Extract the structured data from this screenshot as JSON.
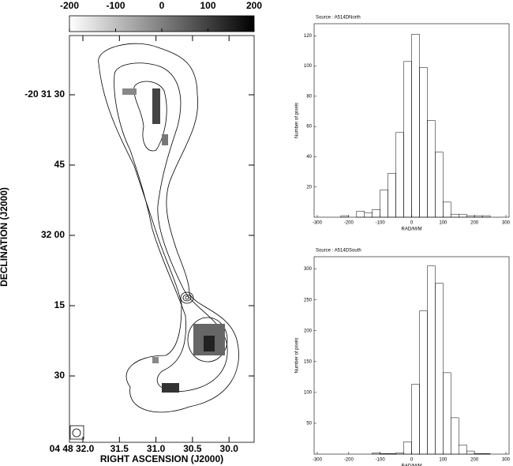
{
  "chart_data": [
    {
      "type": "map",
      "colorbar": {
        "lim": [
          -200,
          200
        ],
        "ticks": [
          -200,
          -100,
          0,
          100,
          200
        ]
      },
      "xlabel": "RIGHT ASCENSION (J2000)",
      "ylabel": "DECLINATION (J2000)",
      "x_tick_labels": [
        "04 48 32.0",
        "31.5",
        "31.0",
        "30.5",
        "30.0"
      ],
      "y_tick_labels": [
        "-20 31 30",
        "45",
        "32 00",
        "15",
        "30"
      ]
    },
    {
      "type": "histogram",
      "title": "Source : A514DNorth",
      "xlabel": "RAD/M/M",
      "ylabel": "Number of pixels",
      "bins": [
        -300,
        -275,
        -250,
        -225,
        -200,
        -175,
        -150,
        -125,
        -100,
        -75,
        -50,
        -25,
        0,
        25,
        50,
        75,
        100,
        125,
        150,
        175,
        200,
        225,
        250,
        275,
        300
      ],
      "values": [
        0,
        0,
        0,
        1,
        0,
        4,
        3,
        5,
        18,
        29,
        56,
        103,
        121,
        99,
        64,
        43,
        10,
        2,
        2,
        1,
        1,
        1,
        0,
        0
      ],
      "xlim": [
        -310,
        310
      ],
      "xticks": [
        -300,
        -200,
        -100,
        0,
        100,
        200,
        300
      ],
      "ylim": [
        0,
        128
      ],
      "yticks": [
        20,
        40,
        60,
        80,
        100,
        120
      ]
    },
    {
      "type": "histogram",
      "title": "Source : A514DSouth",
      "xlabel": "RAD/M/M",
      "ylabel": "Number of pixels",
      "bins": [
        -300,
        -275,
        -250,
        -225,
        -200,
        -175,
        -150,
        -125,
        -100,
        -75,
        -50,
        -25,
        0,
        25,
        50,
        75,
        100,
        125,
        150,
        175,
        200,
        225,
        250,
        275,
        300
      ],
      "values": [
        0,
        0,
        0,
        0,
        0,
        0,
        0,
        2,
        1,
        1,
        2,
        20,
        113,
        232,
        305,
        277,
        132,
        59,
        15,
        5,
        1,
        1,
        0,
        0
      ],
      "xlim": [
        -310,
        310
      ],
      "xticks": [
        -300,
        -200,
        -100,
        0,
        100,
        200,
        300
      ],
      "ylim": [
        0,
        320
      ],
      "yticks": [
        50,
        100,
        150,
        200,
        250,
        300
      ]
    }
  ]
}
